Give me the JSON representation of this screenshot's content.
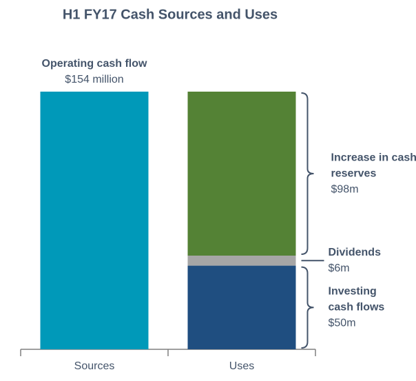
{
  "chart_data": {
    "type": "bar",
    "stacked": true,
    "title": "H1 FY17 Cash Sources and Uses",
    "categories": [
      "Sources",
      "Uses"
    ],
    "series": [
      {
        "name": "Operating cash flow",
        "color": "#0099b9",
        "values": [
          154,
          null
        ],
        "value_labels": [
          "$154 million",
          null
        ]
      },
      {
        "name": "Investing cash flows",
        "color": "#1f4e80",
        "values": [
          null,
          50
        ],
        "value_labels": [
          null,
          "$50m"
        ]
      },
      {
        "name": "Dividends",
        "color": "#a6a6a6",
        "values": [
          null,
          6
        ],
        "value_labels": [
          null,
          "$6m"
        ]
      },
      {
        "name": "Increase in cash reserves",
        "color": "#548235",
        "values": [
          null,
          98
        ],
        "value_labels": [
          null,
          "$98m"
        ]
      }
    ]
  }
}
